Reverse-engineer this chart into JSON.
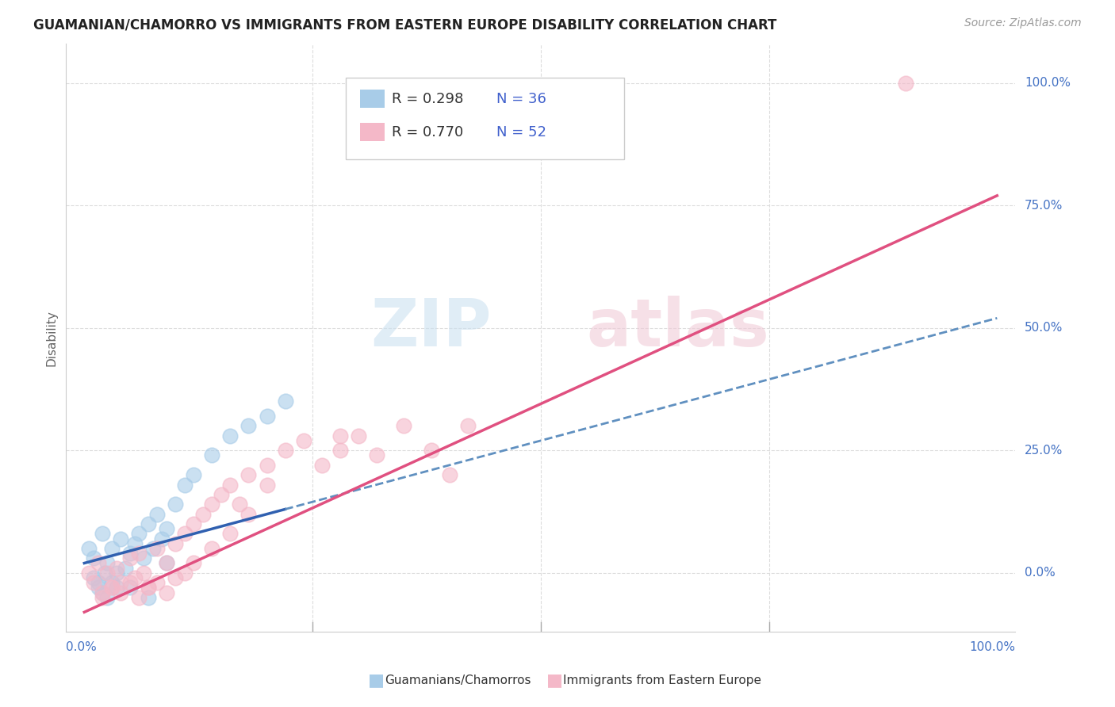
{
  "title": "GUAMANIAN/CHAMORRO VS IMMIGRANTS FROM EASTERN EUROPE DISABILITY CORRELATION CHART",
  "source": "Source: ZipAtlas.com",
  "ylabel": "Disability",
  "legend_label1": "Guamanians/Chamorros",
  "legend_label2": "Immigrants from Eastern Europe",
  "R1": 0.298,
  "N1": 36,
  "R2": 0.77,
  "N2": 52,
  "color_blue": "#a8cce8",
  "color_pink": "#f4b8c8",
  "color_blue_line": "#3060b0",
  "color_pink_line": "#e05080",
  "color_blue_line_dash": "#6090c0",
  "xlim": [
    0,
    100
  ],
  "ylim": [
    -10,
    105
  ],
  "grid_y": [
    0,
    25,
    50,
    75,
    100
  ],
  "grid_x": [
    0,
    25,
    50,
    75,
    100
  ],
  "ytick_labels": [
    "0.0%",
    "25.0%",
    "50.0%",
    "75.0%",
    "100.0%"
  ],
  "xtick_labels": [
    "0.0%",
    "100.0%"
  ],
  "blue_x": [
    0.5,
    1.0,
    1.5,
    2.0,
    2.2,
    2.5,
    3.0,
    3.5,
    4.0,
    4.5,
    5.0,
    5.5,
    6.0,
    6.5,
    7.0,
    7.5,
    8.0,
    8.5,
    9.0,
    10.0,
    11.0,
    12.0,
    14.0,
    16.0,
    18.0,
    20.0,
    22.0,
    7.0,
    3.0,
    2.0,
    1.5,
    1.0,
    2.5,
    3.5,
    5.0,
    9.0
  ],
  "blue_y": [
    5.0,
    3.0,
    -2.0,
    8.0,
    0.0,
    2.0,
    5.0,
    -3.0,
    7.0,
    1.0,
    4.0,
    6.0,
    8.0,
    3.0,
    10.0,
    5.0,
    12.0,
    7.0,
    9.0,
    14.0,
    18.0,
    20.0,
    24.0,
    28.0,
    30.0,
    32.0,
    35.0,
    -5.0,
    -2.0,
    -4.0,
    -3.0,
    -1.0,
    -5.0,
    0.0,
    -3.0,
    2.0
  ],
  "pink_x": [
    0.5,
    1.0,
    1.5,
    2.0,
    2.5,
    3.0,
    3.5,
    4.0,
    5.0,
    5.5,
    6.0,
    6.5,
    7.0,
    8.0,
    9.0,
    10.0,
    11.0,
    12.0,
    13.0,
    14.0,
    15.0,
    16.0,
    17.0,
    18.0,
    20.0,
    22.0,
    24.0,
    26.0,
    28.0,
    30.0,
    32.0,
    35.0,
    38.0,
    40.0,
    42.0,
    2.0,
    3.0,
    4.0,
    5.0,
    6.0,
    7.0,
    8.0,
    9.0,
    10.0,
    11.0,
    12.0,
    14.0,
    16.0,
    18.0,
    20.0,
    90.0,
    28.0
  ],
  "pink_y": [
    0.0,
    -2.0,
    2.0,
    -4.0,
    0.0,
    -3.0,
    1.0,
    -2.0,
    3.0,
    -1.0,
    4.0,
    0.0,
    -3.0,
    5.0,
    2.0,
    6.0,
    8.0,
    10.0,
    12.0,
    14.0,
    16.0,
    18.0,
    14.0,
    20.0,
    22.0,
    25.0,
    27.0,
    22.0,
    25.0,
    28.0,
    24.0,
    30.0,
    25.0,
    20.0,
    30.0,
    -5.0,
    -3.0,
    -4.0,
    -2.0,
    -5.0,
    -3.0,
    -2.0,
    -4.0,
    -1.0,
    0.0,
    2.0,
    5.0,
    8.0,
    12.0,
    18.0,
    100.0,
    28.0
  ],
  "blue_line_x0": 0,
  "blue_line_x1": 100,
  "blue_line_y0": 2,
  "blue_line_y1": 52,
  "pink_line_x0": 0,
  "pink_line_x1": 100,
  "pink_line_y0": -8,
  "pink_line_y1": 77
}
